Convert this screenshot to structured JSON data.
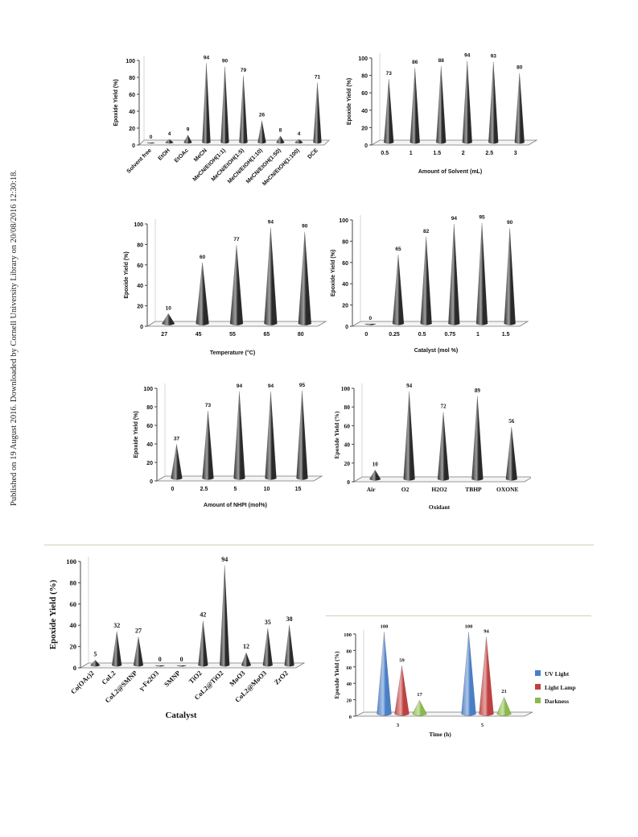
{
  "side_note": "Published on 19 August 2016. Downloaded by Cornell University Library on 20/08/2016 12:30:18.",
  "chart_data": [
    {
      "type": "bar",
      "ylabel": "Epoxide Yield (%)",
      "xlabel": "",
      "ylim": [
        0,
        100
      ],
      "yticks": [
        0,
        20,
        40,
        60,
        80,
        100
      ],
      "categories": [
        "Solvent free",
        "EtOH",
        "EtOAc",
        "MeCN",
        "MeCN/EtOH(1:1)",
        "MeCN/EtOH(1:5)",
        "MeCN/EtOH(1:10)",
        "MeCN/EtOH(1:50)",
        "MeCN/EtOH(1:100)",
        "DCE"
      ],
      "values": [
        0,
        4,
        9,
        94,
        90,
        79,
        26,
        8,
        4,
        71
      ],
      "bar_color": "#2a2a2a"
    },
    {
      "type": "bar",
      "ylabel": "Epoxide Yield (%)",
      "xlabel": "Amount of Solvent (mL)",
      "ylim": [
        0,
        100
      ],
      "yticks": [
        0,
        20,
        40,
        60,
        80,
        100
      ],
      "categories": [
        "0.5",
        "1",
        "1.5",
        "2",
        "2.5",
        "3"
      ],
      "values": [
        73,
        86,
        88,
        94,
        93,
        80
      ],
      "bar_color": "#2a2a2a"
    },
    {
      "type": "bar",
      "ylabel": "Epoxide Yield (%)",
      "xlabel": "Temperature (°C)",
      "ylim": [
        0,
        100
      ],
      "yticks": [
        0,
        20,
        40,
        60,
        80,
        100
      ],
      "categories": [
        "27",
        "45",
        "55",
        "65",
        "80"
      ],
      "values": [
        10,
        60,
        77,
        94,
        90
      ],
      "bar_color": "#2a2a2a"
    },
    {
      "type": "bar",
      "ylabel": "Epoxide Yield (%)",
      "xlabel": "Catalyst (mol %)",
      "ylim": [
        0,
        100
      ],
      "yticks": [
        0,
        20,
        40,
        60,
        80,
        100
      ],
      "categories": [
        "0",
        "0.25",
        "0.5",
        "0.75",
        "1",
        "1.5"
      ],
      "values": [
        0,
        65,
        82,
        94,
        95,
        90
      ],
      "bar_color": "#2a2a2a"
    },
    {
      "type": "bar",
      "ylabel": "Epoxide Yield (%)",
      "xlabel": "Amount of NHPI (mol%)",
      "ylim": [
        0,
        100
      ],
      "yticks": [
        0,
        20,
        40,
        60,
        80,
        100
      ],
      "categories": [
        "0",
        "2.5",
        "5",
        "10",
        "15"
      ],
      "values": [
        37,
        73,
        94,
        94,
        95
      ],
      "bar_color": "#2a2a2a"
    },
    {
      "type": "bar",
      "ylabel": "Epoxide Yield (%)",
      "xlabel": "Oxidant",
      "ylim": [
        0,
        100
      ],
      "yticks": [
        0,
        20,
        40,
        60,
        80,
        100
      ],
      "categories": [
        "Air",
        "O2",
        "H2O2",
        "TBHP",
        "OXONE"
      ],
      "values": [
        10,
        94,
        72,
        89,
        56
      ],
      "bar_color": "#2a2a2a"
    },
    {
      "type": "bar",
      "ylabel": "Epoxide Yield (%)",
      "xlabel": "Catalyst",
      "ylim": [
        0,
        100
      ],
      "yticks": [
        0,
        20,
        40,
        60,
        80,
        100
      ],
      "categories": [
        "Co(OAc)2",
        "CoL2",
        "CoL2@SMNP",
        "γ-Fe2O3",
        "SMNP",
        "TiO2",
        "CoL2@TiO2",
        "MoO3",
        "CoL2@MoO3",
        "ZrO2"
      ],
      "values": [
        5,
        32,
        27,
        0,
        0,
        42,
        94,
        12,
        35,
        38
      ],
      "bar_color": "#2a2a2a"
    },
    {
      "type": "bar",
      "ylabel": "Epoxide Yield (%)",
      "xlabel": "Time (h)",
      "ylim": [
        0,
        100
      ],
      "yticks": [
        0,
        20,
        40,
        60,
        80,
        100
      ],
      "categories": [
        "3",
        "5"
      ],
      "series": [
        {
          "name": "UV Light",
          "values": [
            100,
            100
          ],
          "color": "#4a7fc8"
        },
        {
          "name": "Light Lamp",
          "values": [
            59,
            94
          ],
          "color": "#c0403f"
        },
        {
          "name": "Darkness",
          "values": [
            17,
            21
          ],
          "color": "#8bbb47"
        }
      ],
      "legend": "right"
    }
  ]
}
